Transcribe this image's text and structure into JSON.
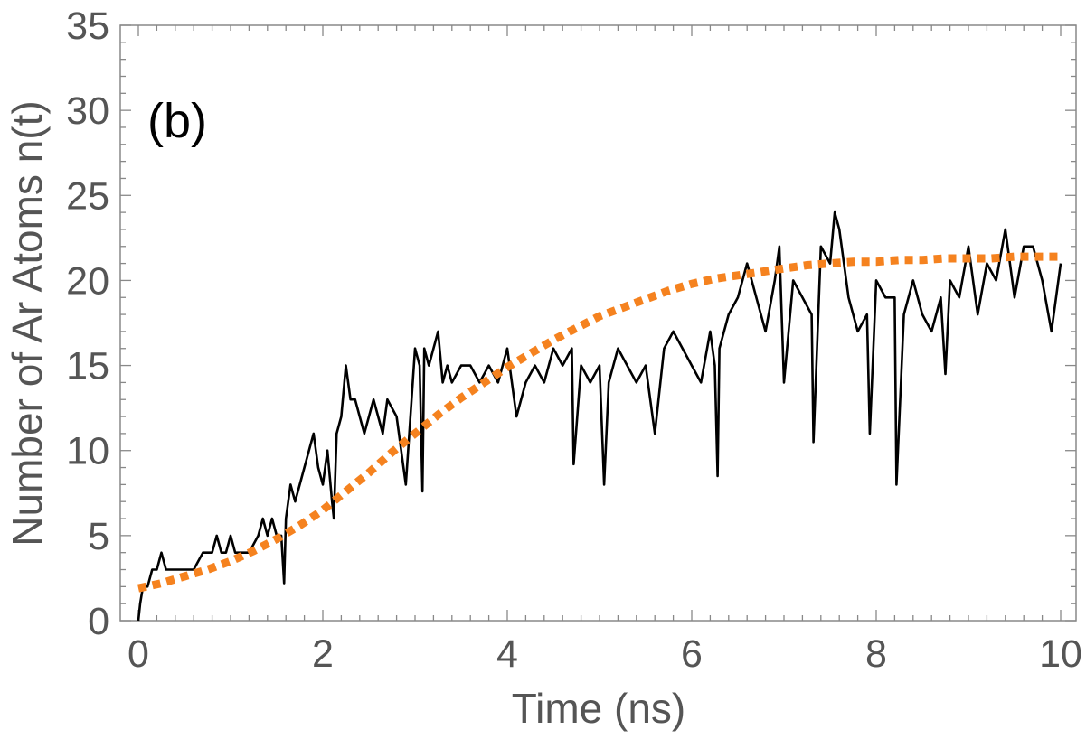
{
  "chart_data": {
    "type": "line",
    "panel_label": "(b)",
    "title": "",
    "xlabel": "Time (ns)",
    "ylabel": "Number of Ar Atoms n(t)",
    "xlim": [
      0,
      10
    ],
    "ylim": [
      0,
      35
    ],
    "xticks": [
      "0",
      "2",
      "4",
      "6",
      "8",
      "10"
    ],
    "yticks": [
      "0",
      "5",
      "10",
      "15",
      "20",
      "25",
      "30",
      "35"
    ],
    "grid": false,
    "legend": "none",
    "series": [
      {
        "color": "#000000",
        "style": "solid",
        "x": [
          0.0,
          0.02,
          0.05,
          0.1,
          0.15,
          0.2,
          0.25,
          0.3,
          0.32,
          0.35,
          0.4,
          0.45,
          0.5,
          0.6,
          0.7,
          0.8,
          0.85,
          0.9,
          0.95,
          1.0,
          1.05,
          1.1,
          1.2,
          1.3,
          1.35,
          1.4,
          1.45,
          1.5,
          1.55,
          1.58,
          1.6,
          1.65,
          1.7,
          1.75,
          1.8,
          1.85,
          1.9,
          1.95,
          2.0,
          2.05,
          2.1,
          2.12,
          2.15,
          2.2,
          2.25,
          2.3,
          2.35,
          2.4,
          2.45,
          2.5,
          2.55,
          2.6,
          2.65,
          2.7,
          2.8,
          2.9,
          3.0,
          3.05,
          3.08,
          3.1,
          3.15,
          3.2,
          3.25,
          3.3,
          3.35,
          3.4,
          3.5,
          3.6,
          3.7,
          3.8,
          3.9,
          4.0,
          4.1,
          4.2,
          4.3,
          4.4,
          4.5,
          4.6,
          4.7,
          4.72,
          4.8,
          4.9,
          5.0,
          5.05,
          5.1,
          5.2,
          5.3,
          5.4,
          5.5,
          5.6,
          5.7,
          5.8,
          5.9,
          6.0,
          6.1,
          6.2,
          6.25,
          6.28,
          6.3,
          6.4,
          6.5,
          6.6,
          6.65,
          6.7,
          6.8,
          6.9,
          6.95,
          7.0,
          7.1,
          7.2,
          7.3,
          7.32,
          7.4,
          7.5,
          7.55,
          7.6,
          7.7,
          7.8,
          7.9,
          7.93,
          8.0,
          8.1,
          8.2,
          8.22,
          8.3,
          8.4,
          8.5,
          8.6,
          8.7,
          8.75,
          8.8,
          8.9,
          9.0,
          9.1,
          9.2,
          9.3,
          9.4,
          9.5,
          9.6,
          9.7,
          9.8,
          9.9,
          10.0
        ],
        "y": [
          0,
          1,
          2,
          2,
          3,
          3,
          4,
          3,
          3,
          3,
          3,
          3,
          3,
          3,
          4,
          4,
          5,
          4,
          4,
          5,
          4,
          4,
          4,
          5,
          6,
          5,
          6,
          5,
          5,
          2.2,
          6,
          8,
          7,
          8,
          9,
          10,
          11,
          9,
          8,
          10,
          7,
          6,
          11,
          12,
          15,
          13,
          13,
          12,
          11,
          12,
          13,
          12,
          11,
          13,
          12,
          8,
          16,
          15,
          7.6,
          16,
          15,
          16,
          17,
          14,
          15,
          14,
          15,
          15,
          14,
          15,
          14,
          16,
          12,
          14,
          15,
          14,
          16,
          15,
          16,
          9.2,
          15,
          14,
          15,
          8,
          14,
          16,
          15,
          14,
          15,
          11,
          16,
          17,
          16,
          15,
          14,
          17,
          15,
          8.5,
          16,
          18,
          19,
          21,
          20,
          19,
          17,
          20,
          22,
          14,
          20,
          19,
          18,
          10.5,
          22,
          21,
          24,
          23,
          19,
          17,
          18,
          11,
          20,
          19,
          19,
          8,
          18,
          20,
          18,
          17,
          19,
          14.5,
          20,
          19,
          22,
          18,
          21,
          20,
          23,
          19,
          22,
          22,
          20,
          17,
          21
        ]
      },
      {
        "color": "#f5821f",
        "style": "dotted",
        "x": [
          0,
          0.25,
          0.5,
          0.75,
          1,
          1.25,
          1.5,
          1.75,
          2,
          2.25,
          2.5,
          2.75,
          3,
          3.25,
          3.5,
          3.75,
          4,
          4.25,
          4.5,
          4.75,
          5,
          5.25,
          5.5,
          5.75,
          6,
          6.25,
          6.5,
          6.75,
          7,
          7.25,
          7.5,
          7.75,
          8,
          8.25,
          8.5,
          8.75,
          9,
          9.25,
          9.5,
          9.75,
          10
        ],
        "y": [
          1.9,
          2.2,
          2.6,
          3.0,
          3.5,
          4.1,
          4.8,
          5.6,
          6.5,
          7.6,
          8.7,
          9.9,
          11.0,
          12.1,
          13.1,
          14.0,
          14.9,
          15.7,
          16.5,
          17.2,
          17.9,
          18.4,
          18.9,
          19.4,
          19.8,
          20.1,
          20.3,
          20.5,
          20.7,
          20.9,
          21.0,
          21.1,
          21.1,
          21.2,
          21.2,
          21.3,
          21.3,
          21.3,
          21.4,
          21.4,
          21.4
        ]
      }
    ]
  }
}
